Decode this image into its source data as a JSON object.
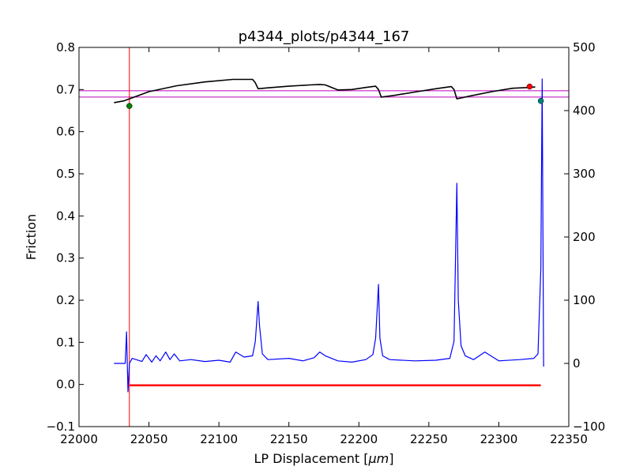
{
  "chart_data": {
    "type": "line",
    "title": "p4344_plots/p4344_167",
    "xlabel_main": "LP Displacement [",
    "xlabel_unit": "μm",
    "xlabel_close": "]",
    "ylabel": "Friction",
    "xlim": [
      22000,
      22350
    ],
    "ylim_left": [
      -0.1,
      0.8
    ],
    "ylim_right": [
      -100,
      500
    ],
    "x_ticks": [
      22000,
      22050,
      22100,
      22150,
      22200,
      22250,
      22300,
      22350
    ],
    "y_ticks_left": [
      "−0.1",
      "0.0",
      "0.1",
      "0.2",
      "0.3",
      "0.4",
      "0.5",
      "0.6",
      "0.7",
      "0.8"
    ],
    "y_ticks_left_values": [
      -0.1,
      0.0,
      0.1,
      0.2,
      0.3,
      0.4,
      0.5,
      0.6,
      0.7,
      0.8
    ],
    "y_ticks_right": [
      "−100",
      "0",
      "100",
      "200",
      "300",
      "400",
      "500"
    ],
    "y_ticks_right_values": [
      -100,
      0,
      100,
      200,
      300,
      400,
      500
    ],
    "grid": false,
    "colors": {
      "friction": "#000000",
      "signal": "#0000ff",
      "vertical_marker": "#ff0000",
      "zero_line": "#ff0000",
      "horizontal_refs": "#bf00bf",
      "start_point": "#008000",
      "end_point": "#ff0000",
      "second_point": "#008080"
    },
    "series": [
      {
        "axis": "left",
        "color": "#000000",
        "x": [
          22025,
          22032,
          22036,
          22050,
          22070,
          22090,
          22110,
          22124,
          22126,
          22128,
          22135,
          22150,
          22165,
          22172,
          22176,
          22179,
          22185,
          22195,
          22205,
          22212,
          22214,
          22216,
          22225,
          22240,
          22255,
          22266,
          22268,
          22270,
          22280,
          22295,
          22310,
          22322,
          22326
        ],
        "values": [
          0.669,
          0.673,
          0.678,
          0.695,
          0.709,
          0.718,
          0.724,
          0.724,
          0.716,
          0.702,
          0.704,
          0.708,
          0.711,
          0.712,
          0.711,
          0.707,
          0.699,
          0.7,
          0.705,
          0.708,
          0.7,
          0.682,
          0.686,
          0.694,
          0.702,
          0.707,
          0.7,
          0.678,
          0.685,
          0.695,
          0.703,
          0.705,
          0.706
        ]
      },
      {
        "axis": "right",
        "color": "#0000ff",
        "x": [
          22025,
          22033,
          22034,
          22035,
          22036,
          22038,
          22045,
          22048,
          22052,
          22055,
          22058,
          22062,
          22065,
          22068,
          22072,
          22080,
          22090,
          22100,
          22108,
          22112,
          22118,
          22124,
          22126,
          22128,
          22129,
          22131,
          22135,
          22150,
          22160,
          22168,
          22172,
          22176,
          22185,
          22195,
          22205,
          22210,
          22212,
          22214,
          22215,
          22217,
          22222,
          22240,
          22255,
          22265,
          22268,
          22270,
          22271,
          22273,
          22276,
          22282,
          22290,
          22300,
          22315,
          22325,
          22328,
          22330,
          22331,
          22332
        ],
        "values": [
          0,
          0,
          50,
          -45,
          0,
          8,
          3,
          14,
          2,
          12,
          4,
          18,
          6,
          15,
          4,
          6,
          3,
          5,
          2,
          18,
          10,
          12,
          35,
          98,
          60,
          15,
          6,
          8,
          4,
          9,
          18,
          12,
          4,
          2,
          6,
          14,
          40,
          125,
          40,
          12,
          6,
          4,
          5,
          8,
          35,
          285,
          100,
          28,
          12,
          6,
          18,
          4,
          6,
          8,
          15,
          150,
          450,
          -5
        ]
      }
    ],
    "markers": [
      {
        "x": 22036,
        "y_left": 0.661,
        "color": "#008000"
      },
      {
        "x": 22322,
        "y_left": 0.707,
        "color": "#ff0000"
      },
      {
        "x": 22330,
        "y_left": 0.673,
        "color": "#008080"
      }
    ],
    "vertical_lines": [
      {
        "x": 22036,
        "color": "#ff0000"
      }
    ],
    "horizontal_lines": [
      {
        "y_left": 0.697,
        "color": "#bf00bf"
      },
      {
        "y_left": 0.682,
        "color": "#bf00bf"
      }
    ],
    "zero_segment": {
      "x_start": 22036,
      "x_end": 22330,
      "y_left": -0.002,
      "color": "#ff0000"
    }
  }
}
